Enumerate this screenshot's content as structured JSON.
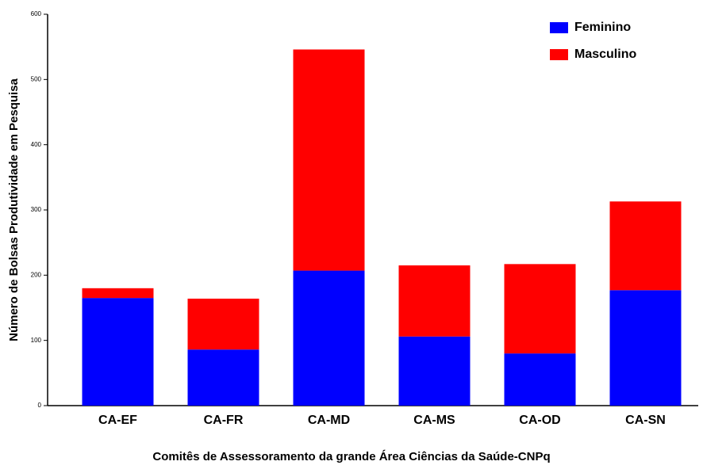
{
  "chart_data": {
    "type": "stacked_bar",
    "x_label": "Comitês de Assessoramento da grande Área Ciências da Saúde-CNPq",
    "y_label": "Número de Bolsas Produtividade em Pesquisa",
    "categories": [
      "CA-EF",
      "CA-FR",
      "CA-MD",
      "CA-MS",
      "CA-OD",
      "CA-SN"
    ],
    "series": [
      {
        "name": "Feminino",
        "color": "#0000ff",
        "values": [
          165,
          86,
          207,
          106,
          80,
          177
        ]
      },
      {
        "name": "Masculino",
        "color": "#ff0000",
        "values": [
          15,
          78,
          339,
          109,
          137,
          136
        ]
      }
    ],
    "ylim": [
      0,
      600
    ],
    "yticks": [
      0,
      100,
      200,
      300,
      400,
      500,
      600
    ],
    "legend": "top-right"
  }
}
